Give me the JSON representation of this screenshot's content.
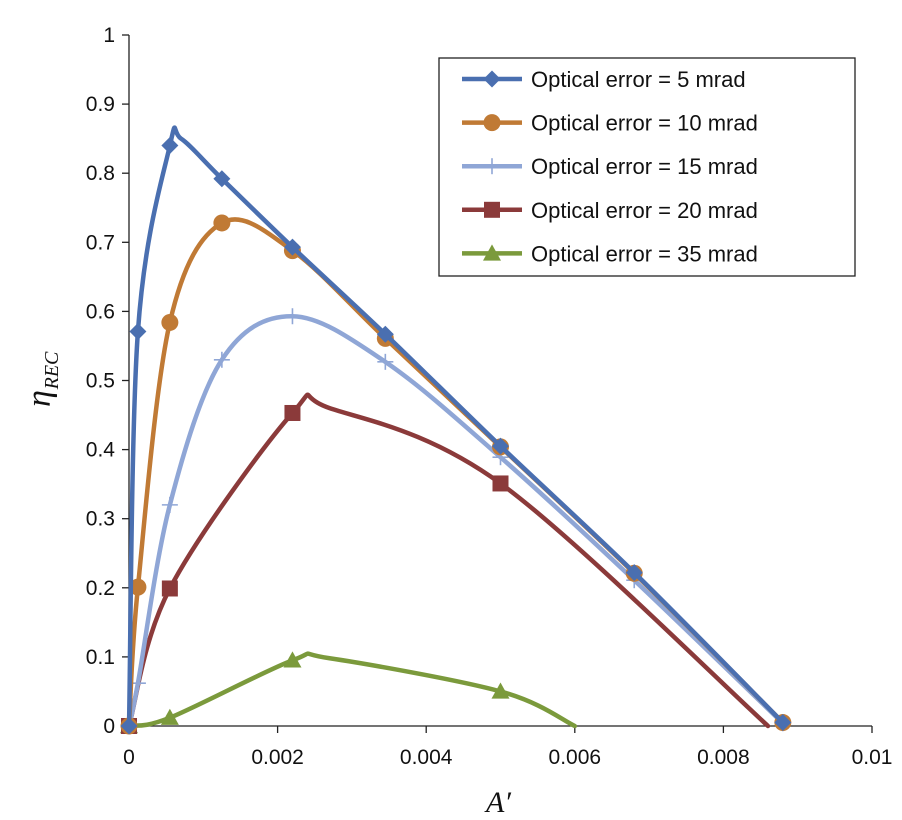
{
  "chart_data": {
    "type": "line",
    "title": "",
    "xlabel": "A′",
    "ylabel_main": "η",
    "ylabel_sub": "REC",
    "xlim": [
      0,
      0.01
    ],
    "ylim": [
      0,
      1
    ],
    "x_ticks": [
      0,
      0.002,
      0.004,
      0.006,
      0.008,
      0.01
    ],
    "x_tick_labels": [
      "0",
      "0.002",
      "0.004",
      "0.006",
      "0.008",
      "0.01"
    ],
    "y_ticks": [
      0,
      0.1,
      0.2,
      0.3,
      0.4,
      0.5,
      0.6,
      0.7,
      0.8,
      0.9,
      1
    ],
    "y_tick_labels": [
      "0",
      "0.1",
      "0.2",
      "0.3",
      "0.4",
      "0.5",
      "0.6",
      "0.7",
      "0.8",
      "0.9",
      "1"
    ],
    "grid": false,
    "legend_position": "top-right",
    "series": [
      {
        "name": "Optical error = 5 mrad",
        "color": "#4a6fb0",
        "marker": "diamond",
        "markers": [
          [
            0,
            0
          ],
          [
            0.00012,
            0.571
          ],
          [
            0.00055,
            0.84
          ],
          [
            0.00125,
            0.792
          ],
          [
            0.0022,
            0.693
          ],
          [
            0.00345,
            0.567
          ],
          [
            0.005,
            0.405
          ],
          [
            0.0068,
            0.222
          ],
          [
            0.0088,
            0.005
          ]
        ],
        "curve": [
          [
            0,
            0
          ],
          [
            0.00012,
            0.571
          ],
          [
            0.00055,
            0.84
          ],
          [
            0.0007,
            0.85
          ],
          [
            0.00125,
            0.792
          ],
          [
            0.0022,
            0.693
          ],
          [
            0.00345,
            0.567
          ],
          [
            0.005,
            0.405
          ],
          [
            0.0068,
            0.222
          ],
          [
            0.0088,
            0.005
          ]
        ]
      },
      {
        "name": "Optical error = 10 mrad",
        "color": "#c07a35",
        "marker": "circle",
        "markers": [
          [
            0,
            0
          ],
          [
            0.00012,
            0.201
          ],
          [
            0.00055,
            0.584
          ],
          [
            0.00125,
            0.728
          ],
          [
            0.0022,
            0.688
          ],
          [
            0.00345,
            0.561
          ],
          [
            0.005,
            0.404
          ],
          [
            0.0068,
            0.221
          ],
          [
            0.0088,
            0.005
          ]
        ],
        "curve": [
          [
            0,
            0
          ],
          [
            0.00012,
            0.201
          ],
          [
            0.00055,
            0.584
          ],
          [
            0.00125,
            0.728
          ],
          [
            0.0022,
            0.688
          ],
          [
            0.00345,
            0.561
          ],
          [
            0.005,
            0.404
          ],
          [
            0.0068,
            0.221
          ],
          [
            0.0088,
            0.005
          ]
        ]
      },
      {
        "name": "Optical error = 15 mrad",
        "color": "#8fa6d6",
        "marker": "plus",
        "markers": [
          [
            0,
            0
          ],
          [
            0.00012,
            0.062
          ],
          [
            0.00055,
            0.32
          ],
          [
            0.00125,
            0.53
          ],
          [
            0.0022,
            0.593
          ],
          [
            0.00345,
            0.527
          ],
          [
            0.005,
            0.389
          ],
          [
            0.0068,
            0.211
          ],
          [
            0.0088,
            0.004
          ]
        ],
        "curve": [
          [
            0,
            0
          ],
          [
            0.00012,
            0.062
          ],
          [
            0.00055,
            0.32
          ],
          [
            0.00125,
            0.53
          ],
          [
            0.0022,
            0.593
          ],
          [
            0.00345,
            0.527
          ],
          [
            0.005,
            0.389
          ],
          [
            0.0068,
            0.211
          ],
          [
            0.0088,
            0.004
          ]
        ]
      },
      {
        "name": "Optical error = 20 mrad",
        "color": "#8b3a3a",
        "marker": "square",
        "markers": [
          [
            0,
            0
          ],
          [
            0.00055,
            0.199
          ],
          [
            0.0022,
            0.453
          ],
          [
            0.005,
            0.351
          ]
        ],
        "curve": [
          [
            0,
            0
          ],
          [
            0.00055,
            0.199
          ],
          [
            0.0022,
            0.453
          ],
          [
            0.0027,
            0.46
          ],
          [
            0.005,
            0.351
          ],
          [
            0.0086,
            0.0
          ]
        ]
      },
      {
        "name": "Optical error = 35 mrad",
        "color": "#7b9a3c",
        "marker": "triangle",
        "markers": [
          [
            0,
            0
          ],
          [
            0.00055,
            0.012
          ],
          [
            0.0022,
            0.095
          ],
          [
            0.005,
            0.05
          ]
        ],
        "curve": [
          [
            0,
            0
          ],
          [
            0.00055,
            0.012
          ],
          [
            0.0022,
            0.095
          ],
          [
            0.0027,
            0.098
          ],
          [
            0.005,
            0.05
          ],
          [
            0.006,
            0.0
          ]
        ]
      }
    ]
  }
}
